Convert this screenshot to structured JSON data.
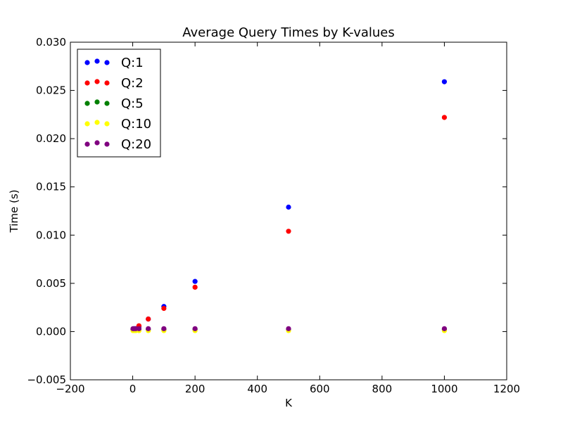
{
  "chart_data": {
    "type": "scatter",
    "title": "Average Query Times by K-values",
    "xlabel": "K",
    "ylabel": "Time (s)",
    "xlim": [
      -200,
      1200
    ],
    "ylim": [
      -0.005,
      0.03
    ],
    "xticks": [
      -200,
      0,
      200,
      400,
      600,
      800,
      1000,
      1200
    ],
    "xtick_labels": [
      "−200",
      "0",
      "200",
      "400",
      "600",
      "800",
      "1000",
      "1200"
    ],
    "yticks": [
      -0.005,
      0.0,
      0.005,
      0.01,
      0.015,
      0.02,
      0.025,
      0.03
    ],
    "ytick_labels": [
      "−0.005",
      "0.000",
      "0.005",
      "0.010",
      "0.015",
      "0.020",
      "0.025",
      "0.030"
    ],
    "grid": false,
    "legend_position": "top-left",
    "series": [
      {
        "name": "Q:1",
        "color": "#0000ff",
        "x": [
          1,
          5,
          10,
          20,
          50,
          100,
          200,
          500,
          1000
        ],
        "y": [
          0.00025,
          0.0003,
          0.0003,
          0.0005,
          0.0013,
          0.0026,
          0.0052,
          0.0129,
          0.0259
        ]
      },
      {
        "name": "Q:2",
        "color": "#ff0000",
        "x": [
          1,
          5,
          10,
          20,
          50,
          100,
          200,
          500,
          1000
        ],
        "y": [
          0.0002,
          0.0002,
          0.0003,
          0.0006,
          0.0013,
          0.0024,
          0.0046,
          0.0104,
          0.0222
        ]
      },
      {
        "name": "Q:5",
        "color": "#008000",
        "x": [
          1,
          5,
          10,
          20,
          50,
          100,
          200,
          500,
          1000
        ],
        "y": [
          0.0002,
          0.0002,
          0.0002,
          0.0002,
          0.0002,
          0.0002,
          0.0002,
          0.0002,
          0.0002
        ]
      },
      {
        "name": "Q:10",
        "color": "#ffff00",
        "x": [
          1,
          5,
          10,
          20,
          50,
          100,
          200,
          500,
          1000
        ],
        "y": [
          0.0001,
          0.0001,
          0.0001,
          0.0001,
          0.0001,
          0.0001,
          0.0001,
          0.0001,
          0.0001
        ]
      },
      {
        "name": "Q:20",
        "color": "#800080",
        "x": [
          1,
          5,
          10,
          20,
          50,
          100,
          200,
          500,
          1000
        ],
        "y": [
          0.0003,
          0.0003,
          0.0003,
          0.0003,
          0.0003,
          0.0003,
          0.0003,
          0.0003,
          0.0003
        ]
      }
    ]
  }
}
